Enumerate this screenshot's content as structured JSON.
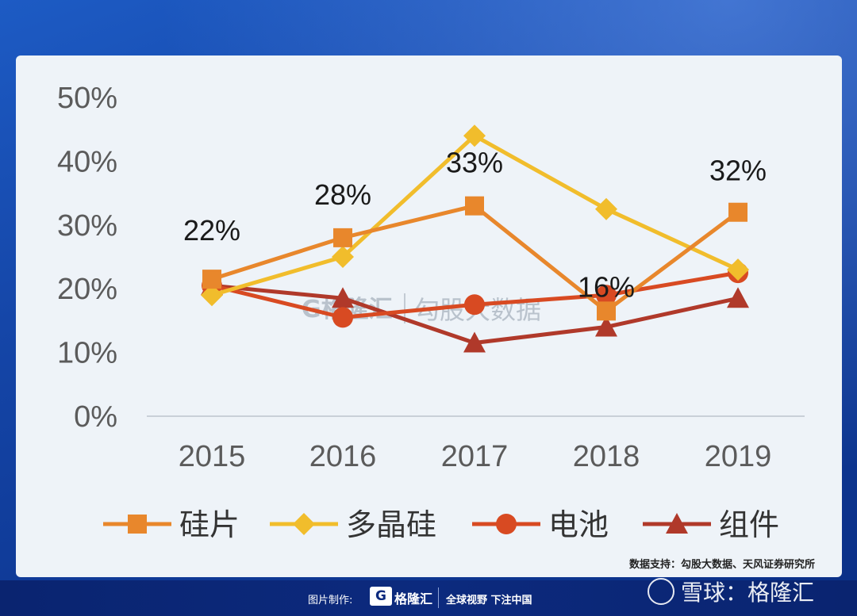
{
  "chart_data": {
    "type": "line",
    "title": "",
    "xlabel": "",
    "ylabel": "",
    "categories": [
      "2015",
      "2016",
      "2017",
      "2018",
      "2019"
    ],
    "y_ticks": [
      "0%",
      "10%",
      "20%",
      "30%",
      "40%",
      "50%"
    ],
    "ylim": [
      0,
      50
    ],
    "grid": false,
    "legend_position": "bottom",
    "series": [
      {
        "name": "硅片",
        "values": [
          21.5,
          28,
          33,
          16.5,
          32
        ],
        "color": "#e8872c",
        "marker": "square"
      },
      {
        "name": "多晶硅",
        "values": [
          19,
          25,
          44,
          32.5,
          23
        ],
        "color": "#f1bd2c",
        "marker": "diamond"
      },
      {
        "name": "电池",
        "values": [
          20.5,
          15.5,
          17.5,
          19,
          22.5
        ],
        "color": "#d84a22",
        "marker": "circle"
      },
      {
        "name": "组件",
        "values": [
          20.5,
          18.5,
          11.5,
          14,
          18.5
        ],
        "color": "#b0392a",
        "marker": "triangle"
      }
    ],
    "data_labels": [
      {
        "text": "22%",
        "x": "2015",
        "y": 22
      },
      {
        "text": "28%",
        "x": "2016",
        "y": 28
      },
      {
        "text": "33%",
        "x": "2017",
        "y": 33
      },
      {
        "text": "16%",
        "x": "2018",
        "y": 16
      },
      {
        "text": "32%",
        "x": "2019",
        "y": 32
      }
    ]
  },
  "watermark": {
    "logo": "G格隆汇",
    "text": "勾股大数据"
  },
  "source_note": "数据支持：勾股大数据、天风证券研究所",
  "footer": {
    "credit_label": "图片制作:",
    "brand_logo": "G",
    "brand_name": "格隆汇",
    "slogan": "全球视野 下注中国",
    "platform": "雪球：格隆汇"
  }
}
